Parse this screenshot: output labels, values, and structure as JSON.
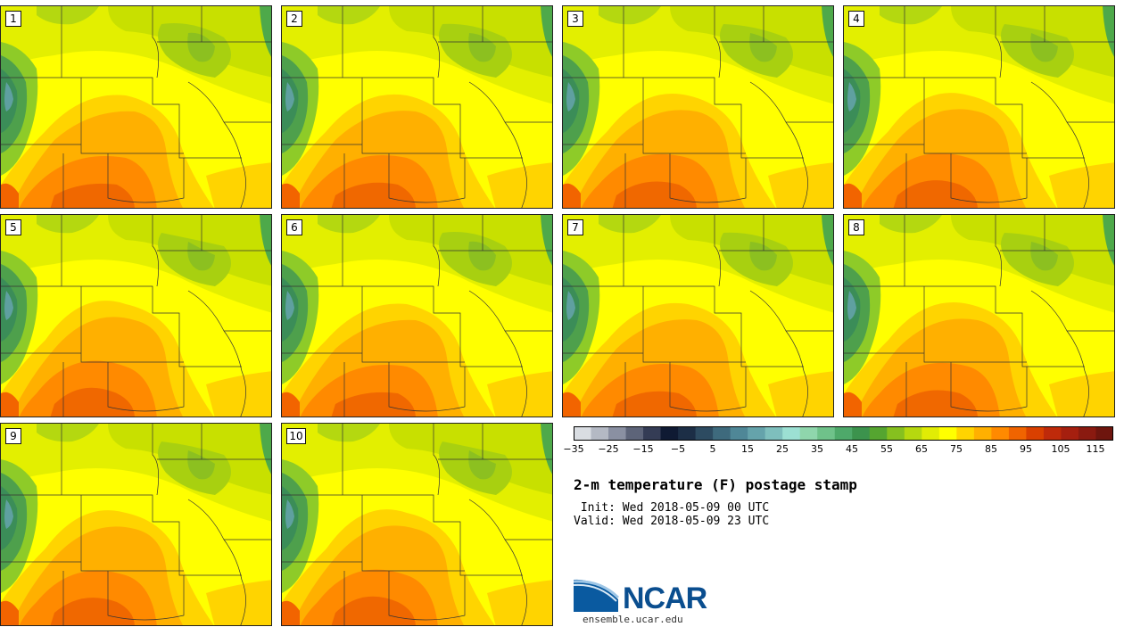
{
  "panels": [
    {
      "label": "1"
    },
    {
      "label": "2"
    },
    {
      "label": "3"
    },
    {
      "label": "4"
    },
    {
      "label": "5"
    },
    {
      "label": "6"
    },
    {
      "label": "7"
    },
    {
      "label": "8"
    },
    {
      "label": "9"
    },
    {
      "label": "10"
    }
  ],
  "title": "2-m temperature (F) postage stamp",
  "init_text": " Init: Wed 2018-05-09 00 UTC",
  "valid_text": "Valid: Wed 2018-05-09 23 UTC",
  "logo": {
    "name": "NCAR",
    "website": "ensemble.ucar.edu"
  },
  "colorbar": {
    "tick_labels": [
      "−35",
      "−25",
      "−15",
      "−5",
      "5",
      "15",
      "25",
      "35",
      "45",
      "55",
      "65",
      "75",
      "85",
      "95",
      "105",
      "115"
    ],
    "colors": [
      "#d9dde2",
      "#b4b9c4",
      "#8a90a2",
      "#5d6479",
      "#343c55",
      "#0f1a33",
      "#1c2e46",
      "#2d4b61",
      "#3e6a7d",
      "#4f8797",
      "#65a3ab",
      "#7ebfbd",
      "#9ce0d3",
      "#8fd6ac",
      "#6fc28a",
      "#4ea96a",
      "#3c934d",
      "#55a530",
      "#86c01f",
      "#b6d80f",
      "#e1ec05",
      "#ffff00",
      "#ffd400",
      "#ffb000",
      "#ff8a00",
      "#f06400",
      "#d94000",
      "#bf2a0a",
      "#a51f0f",
      "#8a1a10",
      "#6e150e"
    ]
  }
}
